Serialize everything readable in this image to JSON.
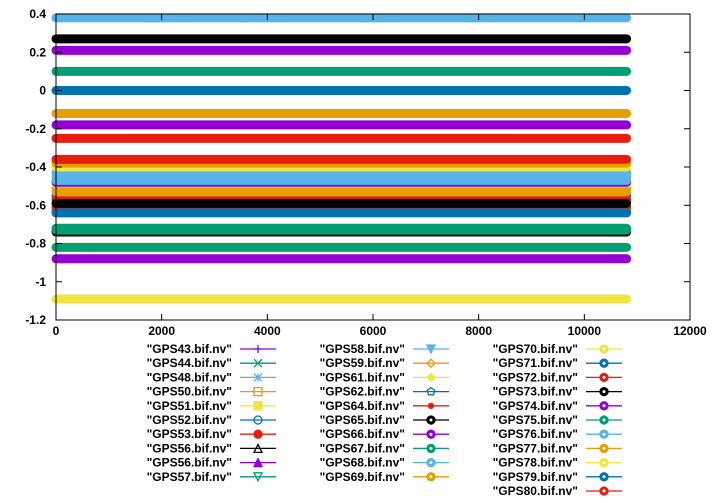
{
  "chart_data": {
    "type": "line",
    "title": "",
    "xlabel": "",
    "ylabel": "",
    "xlim": [
      0,
      12000
    ],
    "ylim": [
      -1.2,
      0.4
    ],
    "x_ticks": [
      0,
      2000,
      4000,
      6000,
      8000,
      10000,
      12000
    ],
    "x_tick_labels": [
      "0",
      "2000",
      "4000",
      "6000",
      "8000",
      "10000",
      "12000"
    ],
    "y_ticks": [
      0.4,
      0.2,
      0,
      -0.2,
      -0.4,
      -0.6,
      -0.8,
      -1,
      -1.2
    ],
    "y_tick_labels": [
      "0.4",
      "0.2",
      "0",
      "-0.2",
      "-0.4",
      "-0.6",
      "-0.8",
      "-1",
      "-1.2"
    ],
    "grid": false,
    "legend_position": "bottom",
    "series": [
      {
        "name": "\"GPS43.bif.nv\"",
        "color": "#9400d3",
        "marker": "plus",
        "x": [
          0,
          10800
        ],
        "y": [
          -0.88,
          -0.88
        ]
      },
      {
        "name": "\"GPS44.bif.nv\"",
        "color": "#009e73",
        "marker": "cross",
        "x": [
          0,
          10800
        ],
        "y": [
          -0.72,
          -0.72
        ]
      },
      {
        "name": "\"GPS48.bif.nv\"",
        "color": "#56b4e9",
        "marker": "star",
        "x": [
          0,
          10800
        ],
        "y": [
          -0.45,
          -0.45
        ]
      },
      {
        "name": "\"GPS50.bif.nv\"",
        "color": "#e69f00",
        "marker": "square-open",
        "x": [
          0,
          10800
        ],
        "y": [
          -0.51,
          -0.51
        ]
      },
      {
        "name": "\"GPS51.bif.nv\"",
        "color": "#f0e442",
        "marker": "square",
        "x": [
          0,
          10800
        ],
        "y": [
          -0.49,
          -0.49
        ]
      },
      {
        "name": "\"GPS52.bif.nv\"",
        "color": "#0072b2",
        "marker": "circle-open",
        "x": [
          0,
          10800
        ],
        "y": [
          -0.55,
          -0.55
        ]
      },
      {
        "name": "\"GPS53.bif.nv\"",
        "color": "#e51e10",
        "marker": "circle",
        "x": [
          0,
          10800
        ],
        "y": [
          -0.57,
          -0.57
        ]
      },
      {
        "name": "\"GPS56.bif.nv\"",
        "color": "#000000",
        "marker": "triangle-open",
        "x": [
          0,
          10800
        ],
        "y": [
          -0.74,
          -0.74
        ]
      },
      {
        "name": "\"GPS56.bif.nv\"",
        "color": "#9400d3",
        "marker": "triangle",
        "x": [
          0,
          10800
        ],
        "y": [
          -0.48,
          -0.48
        ]
      },
      {
        "name": "\"GPS57.bif.nv\"",
        "color": "#009e73",
        "marker": "triangle-down-open",
        "x": [
          0,
          10800
        ],
        "y": [
          -0.73,
          -0.73
        ]
      },
      {
        "name": "\"GPS58.bif.nv\"",
        "color": "#56b4e9",
        "marker": "triangle-down",
        "x": [
          0,
          10800
        ],
        "y": [
          -0.47,
          -0.47
        ]
      },
      {
        "name": "\"GPS59.bif.nv\"",
        "color": "#e69f00",
        "marker": "diamond-open",
        "x": [
          0,
          10800
        ],
        "y": [
          -0.53,
          -0.53
        ]
      },
      {
        "name": "\"GPS61.bif.nv\"",
        "color": "#f0e442",
        "marker": "diamond",
        "x": [
          0,
          10800
        ],
        "y": [
          -0.42,
          -0.42
        ]
      },
      {
        "name": "\"GPS62.bif.nv\"",
        "color": "#0072b2",
        "marker": "pentagon-open",
        "x": [
          0,
          10800
        ],
        "y": [
          -0.63,
          -0.63
        ]
      },
      {
        "name": "\"GPS64.bif.nv\"",
        "color": "#e51e10",
        "marker": "dot",
        "x": [
          0,
          10800
        ],
        "y": [
          -0.61,
          -0.61
        ]
      },
      {
        "name": "\"GPS65.bif.nv\"",
        "color": "#000000",
        "marker": "circle-ring",
        "x": [
          0,
          10800
        ],
        "y": [
          -0.59,
          -0.59
        ]
      },
      {
        "name": "\"GPS66.bif.nv\"",
        "color": "#9400d3",
        "marker": "circle-ring",
        "x": [
          0,
          10800
        ],
        "y": [
          -0.18,
          -0.18
        ]
      },
      {
        "name": "\"GPS67.bif.nv\"",
        "color": "#009e73",
        "marker": "circle-ring",
        "x": [
          0,
          10800
        ],
        "y": [
          -0.82,
          -0.82
        ]
      },
      {
        "name": "\"GPS68.bif.nv\"",
        "color": "#56b4e9",
        "marker": "circle-ring",
        "x": [
          0,
          10800
        ],
        "y": [
          -0.43,
          -0.43
        ]
      },
      {
        "name": "\"GPS69.bif.nv\"",
        "color": "#e69f00",
        "marker": "circle-ring",
        "x": [
          0,
          10800
        ],
        "y": [
          -0.12,
          -0.12
        ]
      },
      {
        "name": "\"GPS70.bif.nv\"",
        "color": "#f0e442",
        "marker": "circle-ring",
        "x": [
          0,
          10800
        ],
        "y": [
          -0.4,
          -0.4
        ]
      },
      {
        "name": "\"GPS71.bif.nv\"",
        "color": "#0072b2",
        "marker": "circle-ring",
        "x": [
          0,
          10800
        ],
        "y": [
          0.0,
          0.0
        ]
      },
      {
        "name": "\"GPS72.bif.nv\"",
        "color": "#e51e10",
        "marker": "circle-ring",
        "x": [
          0,
          10800
        ],
        "y": [
          -0.25,
          -0.25
        ]
      },
      {
        "name": "\"GPS73.bif.nv\"",
        "color": "#000000",
        "marker": "circle-ring",
        "x": [
          0,
          10800
        ],
        "y": [
          0.27,
          0.27
        ]
      },
      {
        "name": "\"GPS74.bif.nv\"",
        "color": "#9400d3",
        "marker": "circle-ring",
        "x": [
          0,
          10800
        ],
        "y": [
          0.21,
          0.21
        ]
      },
      {
        "name": "\"GPS75.bif.nv\"",
        "color": "#009e73",
        "marker": "circle-ring",
        "x": [
          0,
          10800
        ],
        "y": [
          0.1,
          0.1
        ]
      },
      {
        "name": "\"GPS76.bif.nv\"",
        "color": "#56b4e9",
        "marker": "circle-ring",
        "x": [
          0,
          10800
        ],
        "y": [
          0.38,
          0.38
        ]
      },
      {
        "name": "\"GPS77.bif.nv\"",
        "color": "#e69f00",
        "marker": "circle-ring",
        "x": [
          0,
          10800
        ],
        "y": [
          -0.38,
          -0.38
        ]
      },
      {
        "name": "\"GPS78.bif.nv\"",
        "color": "#f0e442",
        "marker": "circle-ring",
        "x": [
          0,
          10800
        ],
        "y": [
          -1.09,
          -1.09
        ]
      },
      {
        "name": "\"GPS79.bif.nv\"",
        "color": "#0072b2",
        "marker": "circle-ring",
        "x": [
          0,
          10800
        ],
        "y": [
          -0.64,
          -0.64
        ]
      },
      {
        "name": "\"GPS80.bif.nv\"",
        "color": "#e51e10",
        "marker": "circle-ring",
        "x": [
          0,
          10800
        ],
        "y": [
          -0.36,
          -0.36
        ]
      }
    ]
  }
}
